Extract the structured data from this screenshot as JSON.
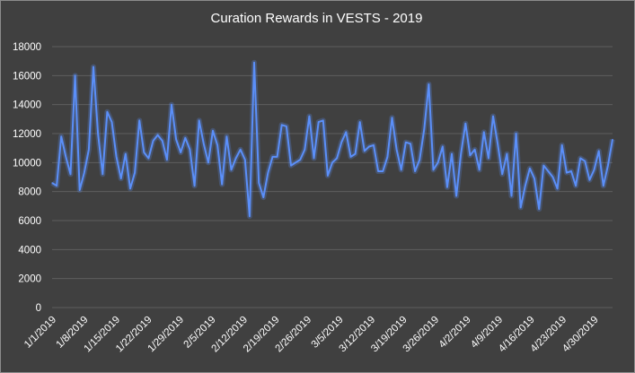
{
  "chart_data": {
    "type": "line",
    "title": "Curation Rewards in VESTS - 2019",
    "xlabel": "",
    "ylabel": "",
    "ylim": [
      0,
      18000
    ],
    "yticks": [
      0,
      2000,
      4000,
      6000,
      8000,
      10000,
      12000,
      14000,
      16000,
      18000
    ],
    "x_tick_labels": [
      "1/1/2019",
      "1/8/2019",
      "1/15/2019",
      "1/22/2019",
      "1/29/2019",
      "2/5/2019",
      "2/12/2019",
      "2/19/2019",
      "2/26/2019",
      "3/5/2019",
      "3/12/2019",
      "3/19/2019",
      "3/26/2019",
      "4/2/2019",
      "4/9/2019",
      "4/16/2019",
      "4/23/2019",
      "4/30/2019"
    ],
    "x_start": "1/1/2019",
    "x_end": "5/4/2019",
    "grid": true,
    "legend": "none",
    "colors": {
      "background": "#404040",
      "line": "#5b8ff9",
      "gridline": "#5e5e5e",
      "text": "#ffffff"
    },
    "series": [
      {
        "values": [
          8600,
          8400,
          11800,
          10400,
          9200,
          16000,
          8100,
          9300,
          10900,
          16600,
          12000,
          9200,
          13500,
          12800,
          10400,
          8900,
          10600,
          8200,
          9300,
          12900,
          10700,
          10300,
          11500,
          11900,
          11500,
          10200,
          14000,
          11600,
          10700,
          11700,
          10900,
          8400,
          12900,
          11300,
          10000,
          12200,
          11200,
          8500,
          11800,
          9500,
          10300,
          10900,
          10200,
          6300,
          16900,
          8600,
          7600,
          9300,
          10400,
          10400,
          12600,
          12500,
          9800,
          10000,
          10200,
          10900,
          13200,
          10300,
          12800,
          12900,
          9100,
          10000,
          10300,
          11400,
          12100,
          10400,
          10600,
          12800,
          10800,
          11100,
          11200,
          9400,
          9400,
          10400,
          13100,
          10900,
          9500,
          11400,
          11300,
          9400,
          10200,
          12300,
          15400,
          9500,
          10000,
          11100,
          8300,
          10600,
          7700,
          10600,
          12700,
          10500,
          10900,
          9500,
          12100,
          10300,
          13200,
          11300,
          9200,
          10600,
          7700,
          12000,
          6900,
          8400,
          9600,
          8900,
          6800,
          9800,
          9400,
          9000,
          8200,
          11200,
          9300,
          9400,
          8400,
          10300,
          10100,
          8800,
          9500,
          10800,
          8400,
          9800,
          11600
        ]
      }
    ]
  }
}
